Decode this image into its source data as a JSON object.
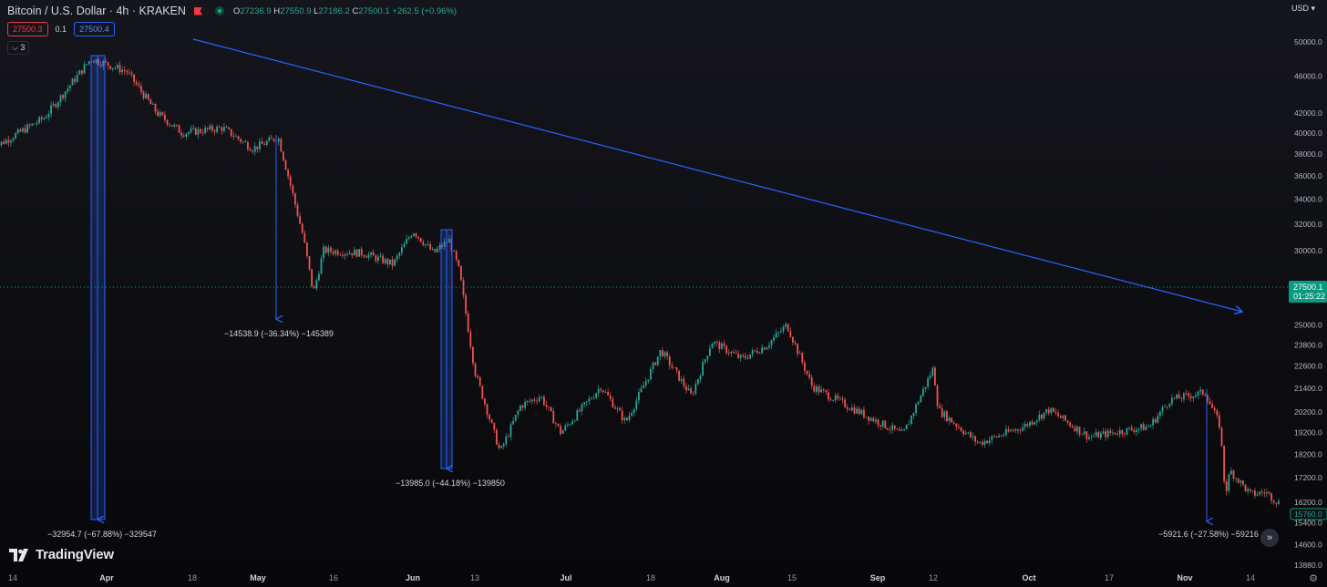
{
  "header": {
    "title": "Bitcoin / U.S. Dollar · 4h · KRAKEN",
    "ohlc": [
      {
        "key": "O",
        "value": "27236.9"
      },
      {
        "key": "H",
        "value": "27550.9"
      },
      {
        "key": "L",
        "value": "27186.2"
      },
      {
        "key": "C",
        "value": "27500.1"
      }
    ],
    "change": "+262.5 (+0.96%)"
  },
  "trade": {
    "sell": "27500.3",
    "spread": "0.1",
    "buy": "27500.4"
  },
  "indicators_toggle": "3",
  "currency": "USD",
  "price_label": {
    "price": "27500.1",
    "countdown": "01:25:22",
    "low_label": "15760.0"
  },
  "measurements": [
    {
      "label": "−32954.7 (−67.88%) −329547"
    },
    {
      "label": "−14538.9 (−36.34%) −145389"
    },
    {
      "label": "−13985.0 (−44.18%) −139850"
    },
    {
      "label": "−5921.6 (−27.58%) −59216"
    }
  ],
  "logo_text": "TradingView",
  "colors": {
    "up": "#26a69a",
    "down": "#ef5350",
    "trendline": "#2962ff",
    "background": "#0f0f12",
    "price_label": "#089981"
  },
  "chart_data": {
    "type": "candlestick",
    "scale": "log",
    "ylim": [
      13880,
      50000
    ],
    "y_ticks": [
      "50000.0",
      "46000.0",
      "42000.0",
      "40000.0",
      "38000.0",
      "36000.0",
      "34000.0",
      "32000.0",
      "30000.0",
      "28000.0",
      "26000.0",
      "25000.0",
      "23800.0",
      "22600.0",
      "21400.0",
      "20200.0",
      "19200.0",
      "18200.0",
      "17200.0",
      "16200.0",
      "15400.0",
      "14600.0",
      "13880.0"
    ],
    "x_ticks": [
      "14",
      "Apr",
      "18",
      "May",
      "16",
      "Jun",
      "13",
      "Jul",
      "18",
      "Aug",
      "15",
      "Sep",
      "12",
      "Oct",
      "17",
      "Nov",
      "14"
    ],
    "price_path": [
      {
        "x": "Mar 10",
        "y": 38500
      },
      {
        "x": "Mar 20",
        "y": 41500
      },
      {
        "x": "Mar 29",
        "y": 48000
      },
      {
        "x": "Apr 5",
        "y": 46500
      },
      {
        "x": "Apr 11",
        "y": 42000
      },
      {
        "x": "Apr 16",
        "y": 40000
      },
      {
        "x": "Apr 24",
        "y": 40500
      },
      {
        "x": "Apr 30",
        "y": 38500
      },
      {
        "x": "May 5",
        "y": 39600
      },
      {
        "x": "May 7",
        "y": 36000
      },
      {
        "x": "May 10",
        "y": 31000
      },
      {
        "x": "May 12",
        "y": 27000
      },
      {
        "x": "May 14",
        "y": 30000
      },
      {
        "x": "May 22",
        "y": 29800
      },
      {
        "x": "May 28",
        "y": 29000
      },
      {
        "x": "Jun 1",
        "y": 31500
      },
      {
        "x": "Jun 5",
        "y": 29800
      },
      {
        "x": "Jun 8",
        "y": 30800
      },
      {
        "x": "Jun 10",
        "y": 28500
      },
      {
        "x": "Jun 13",
        "y": 22300
      },
      {
        "x": "Jun 18",
        "y": 18300
      },
      {
        "x": "Jun 22",
        "y": 20500
      },
      {
        "x": "Jun 26",
        "y": 21000
      },
      {
        "x": "Jun 30",
        "y": 19200
      },
      {
        "x": "Jul 8",
        "y": 21500
      },
      {
        "x": "Jul 13",
        "y": 19700
      },
      {
        "x": "Jul 20",
        "y": 23500
      },
      {
        "x": "Jul 26",
        "y": 21000
      },
      {
        "x": "Jul 30",
        "y": 24000
      },
      {
        "x": "Aug 5",
        "y": 23000
      },
      {
        "x": "Aug 10",
        "y": 23800
      },
      {
        "x": "Aug 14",
        "y": 25000
      },
      {
        "x": "Aug 19",
        "y": 21500
      },
      {
        "x": "Aug 26",
        "y": 20500
      },
      {
        "x": "Sep 6",
        "y": 19100
      },
      {
        "x": "Sep 12",
        "y": 22500
      },
      {
        "x": "Sep 13",
        "y": 20300
      },
      {
        "x": "Sep 21",
        "y": 18700
      },
      {
        "x": "Sep 30",
        "y": 19500
      },
      {
        "x": "Oct 5",
        "y": 20300
      },
      {
        "x": "Oct 13",
        "y": 19000
      },
      {
        "x": "Oct 25",
        "y": 19500
      },
      {
        "x": "Oct 29",
        "y": 20800
      },
      {
        "x": "Nov 5",
        "y": 21200
      },
      {
        "x": "Nov 8",
        "y": 19500
      },
      {
        "x": "Nov 9",
        "y": 16500
      },
      {
        "x": "Nov 10",
        "y": 17500
      },
      {
        "x": "Nov 14",
        "y": 16500
      },
      {
        "x": "Nov 17",
        "y": 16600
      },
      {
        "x": "Nov 20",
        "y": 16100
      }
    ]
  }
}
